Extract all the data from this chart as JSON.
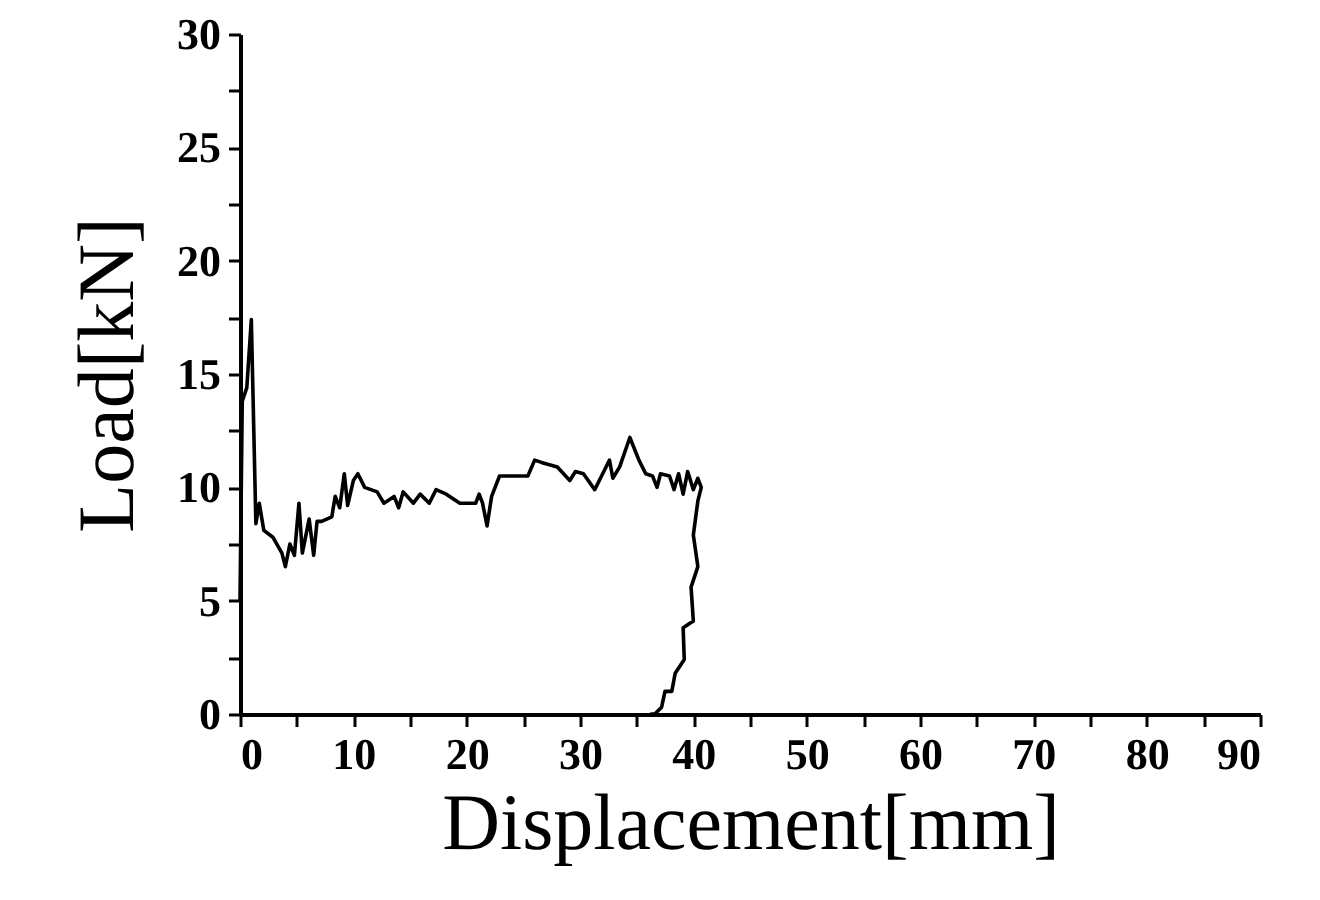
{
  "chart_data": {
    "type": "line",
    "xlabel": "Displacement[mm]",
    "ylabel": "Load[kN]",
    "xlim": [
      0,
      90
    ],
    "ylim": [
      0,
      30
    ],
    "xticks": [
      0,
      {
        "value": 5,
        "label": null
      },
      10,
      {
        "value": 15,
        "label": null
      },
      20,
      {
        "value": 25,
        "label": null
      },
      30,
      {
        "value": 35,
        "label": null
      },
      40,
      {
        "value": 45,
        "label": null
      },
      50,
      {
        "value": 55,
        "label": null
      },
      60,
      {
        "value": 65,
        "label": null
      },
      70,
      {
        "value": 75,
        "label": null
      },
      80,
      {
        "value": 85,
        "label": null
      },
      90
    ],
    "yticks": [
      0,
      {
        "value": 2.5,
        "label": null
      },
      5,
      {
        "value": 7.5,
        "label": null
      },
      10,
      {
        "value": 12.5,
        "label": null
      },
      15,
      {
        "value": 17.5,
        "label": null
      },
      20,
      {
        "value": 22.5,
        "label": null
      },
      25,
      {
        "value": 27.5,
        "label": null
      },
      30
    ],
    "grid": false,
    "marker": "none",
    "line_style": "solid",
    "series": [
      {
        "color": "#000000",
        "x": [
          0,
          0.2,
          0.6,
          1.0,
          1.4,
          1.7,
          2.1,
          2.9,
          3.7,
          4.0,
          4.4,
          4.8,
          5.2,
          5.5,
          6.1,
          6.5,
          6.8,
          7.2,
          8.1,
          8.4,
          8.8,
          9.2,
          9.5,
          10.0,
          10.4,
          11.0,
          12.1,
          12.7,
          13.6,
          14.0,
          14.4,
          15.3,
          15.9,
          16.7,
          17.3,
          18.2,
          19.4,
          20.8,
          21.1,
          21.4,
          21.8,
          22.2,
          22.9,
          25.4,
          26.0,
          26.6,
          28.0,
          29.1,
          29.6,
          30.3,
          31.3,
          32.0,
          32.6,
          32.9,
          33.5,
          34.4,
          35.2,
          35.8,
          36.4,
          36.8,
          37.1,
          37.9,
          38.3,
          38.7,
          39.1,
          39.5,
          40.0,
          40.4,
          40.7,
          40.4,
          40.0,
          40.4,
          39.8,
          40.0,
          39.1,
          39.2,
          38.4,
          38.1,
          37.5,
          37.2,
          36.6,
          36.2
        ],
        "values": [
          5,
          13.8,
          14.4,
          17.4,
          8.4,
          9.3,
          8.1,
          7.8,
          7.1,
          6.5,
          7.5,
          7.0,
          9.3,
          7.1,
          8.6,
          7.0,
          8.5,
          8.5,
          8.7,
          9.6,
          9.1,
          10.6,
          9.2,
          10.3,
          10.6,
          10.0,
          9.8,
          9.3,
          9.6,
          9.1,
          9.8,
          9.3,
          9.7,
          9.3,
          9.9,
          9.7,
          9.3,
          9.3,
          9.7,
          9.3,
          8.3,
          9.6,
          10.5,
          10.5,
          11.2,
          11.1,
          10.9,
          10.3,
          10.7,
          10.6,
          9.9,
          10.6,
          11.2,
          10.4,
          10.9,
          12.2,
          11.2,
          10.6,
          10.5,
          10.0,
          10.6,
          10.5,
          9.9,
          10.6,
          9.7,
          10.7,
          9.9,
          10.4,
          10.0,
          9.4,
          7.9,
          6.5,
          5.6,
          4.1,
          3.8,
          2.4,
          1.8,
          1.0,
          1.0,
          0.3,
          0,
          0
        ]
      }
    ]
  }
}
